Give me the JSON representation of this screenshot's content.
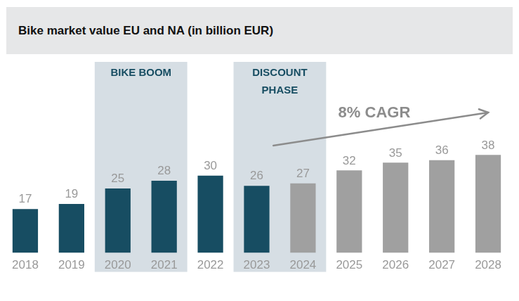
{
  "chart_data": {
    "type": "bar",
    "title": "Bike market value EU and NA (in billion EUR)",
    "categories": [
      "2018",
      "2019",
      "2020",
      "2021",
      "2022",
      "2023",
      "2024",
      "2025",
      "2026",
      "2027",
      "2028"
    ],
    "values": [
      17,
      19,
      25,
      28,
      30,
      26,
      27,
      32,
      35,
      36,
      38
    ],
    "colors": [
      "#174d62",
      "#174d62",
      "#174d62",
      "#174d62",
      "#174d62",
      "#174d62",
      "#a0a0a0",
      "#a0a0a0",
      "#a0a0a0",
      "#a0a0a0",
      "#a0a0a0"
    ],
    "ylim": [
      0,
      40
    ],
    "grid": false,
    "data_labels": true,
    "tick_labels": "x",
    "annotations": [
      {
        "type": "band",
        "text": "BIKE BOOM",
        "from": "2020",
        "to": "2021"
      },
      {
        "type": "band",
        "text": "DISCOUNT PHASE",
        "from": "2023",
        "to": "2024"
      },
      {
        "type": "arrow",
        "text": "8% CAGR",
        "from": "2023",
        "to": "2028"
      }
    ]
  }
}
